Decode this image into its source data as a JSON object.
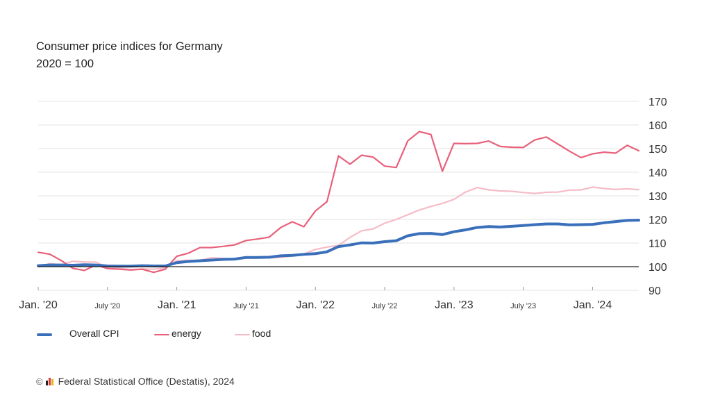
{
  "header": {
    "title": "Consumer price indices for Germany",
    "subtitle": "2020 = 100"
  },
  "footer": {
    "copyright": "©",
    "source": "Federal Statistical Office (Destatis), 2024"
  },
  "colors": {
    "cpi": "#3a6fba",
    "energy": "#e8607a",
    "food": "#f6bcc6",
    "baseline": "#222222",
    "grid": "#e3e3e3",
    "logo_bars": [
      "#222222",
      "#d93c3c",
      "#e8b417"
    ]
  },
  "chart_data": {
    "type": "line",
    "title": "Consumer price indices for Germany",
    "subtitle": "2020 = 100",
    "x_tick_labels": [
      "Jan. '20",
      "July '20",
      "Jan. '21",
      "July '21",
      "Jan. '22",
      "July '22",
      "Jan. '23",
      "July '23",
      "Jan. '24"
    ],
    "x_tick_months": [
      0,
      6,
      12,
      18,
      24,
      30,
      36,
      42,
      48
    ],
    "x_range": [
      0,
      52
    ],
    "y_ticks": [
      90,
      100,
      110,
      120,
      130,
      140,
      150,
      160,
      170
    ],
    "ylim": [
      90,
      170
    ],
    "reference_line": 100,
    "grid": true,
    "legend_position": "bottom-left",
    "series": [
      {
        "name": "Overall CPI",
        "key": "cpi",
        "values": [
          100.4,
          100.7,
          100.7,
          100.6,
          100.8,
          100.7,
          100.3,
          100.2,
          100.2,
          100.4,
          100.3,
          100.3,
          101.7,
          102.2,
          102.5,
          102.8,
          103.1,
          103.2,
          103.9,
          103.9,
          104.0,
          104.6,
          104.8,
          105.2,
          105.5,
          106.3,
          108.5,
          109.2,
          110.1,
          110.0,
          110.6,
          111.0,
          113.1,
          114.0,
          114.1,
          113.6,
          114.8,
          115.6,
          116.6,
          117.0,
          116.8,
          117.1,
          117.4,
          117.8,
          118.1,
          118.1,
          117.7,
          117.8,
          117.9,
          118.6,
          119.1,
          119.6,
          119.7
        ],
        "stroke_width": 4
      },
      {
        "name": "energy",
        "key": "energy",
        "values": [
          106.1,
          105.3,
          102.6,
          99.3,
          98.4,
          100.7,
          99.2,
          98.9,
          98.6,
          98.9,
          97.6,
          98.9,
          104.4,
          105.7,
          108.1,
          108.1,
          108.6,
          109.2,
          111.1,
          111.7,
          112.5,
          116.6,
          119.0,
          116.9,
          123.6,
          127.5,
          146.9,
          143.4,
          147.2,
          146.4,
          142.6,
          142.0,
          153.3,
          157.2,
          156.0,
          140.4,
          152.2,
          152.1,
          152.2,
          153.2,
          150.9,
          150.6,
          150.5,
          153.7,
          154.9,
          151.9,
          148.9,
          146.2,
          147.8,
          148.5,
          148.1,
          151.4,
          149.1
        ],
        "stroke_width": 2.2
      },
      {
        "name": "food",
        "key": "food",
        "values": [
          99.9,
          101.3,
          100.8,
          102.3,
          102.0,
          101.9,
          99.7,
          99.3,
          98.8,
          99.0,
          98.9,
          99.5,
          102.5,
          102.7,
          102.7,
          103.8,
          103.5,
          103.1,
          103.6,
          103.7,
          103.7,
          103.9,
          104.5,
          105.4,
          107.3,
          108.3,
          109.0,
          112.4,
          115.2,
          116.0,
          118.4,
          120.0,
          122.0,
          124.0,
          125.5,
          126.8,
          128.5,
          131.6,
          133.5,
          132.5,
          132.1,
          131.9,
          131.4,
          131.0,
          131.5,
          131.6,
          132.4,
          132.5,
          133.7,
          133.1,
          132.7,
          133.0,
          132.6
        ],
        "stroke_width": 2.2
      }
    ]
  }
}
